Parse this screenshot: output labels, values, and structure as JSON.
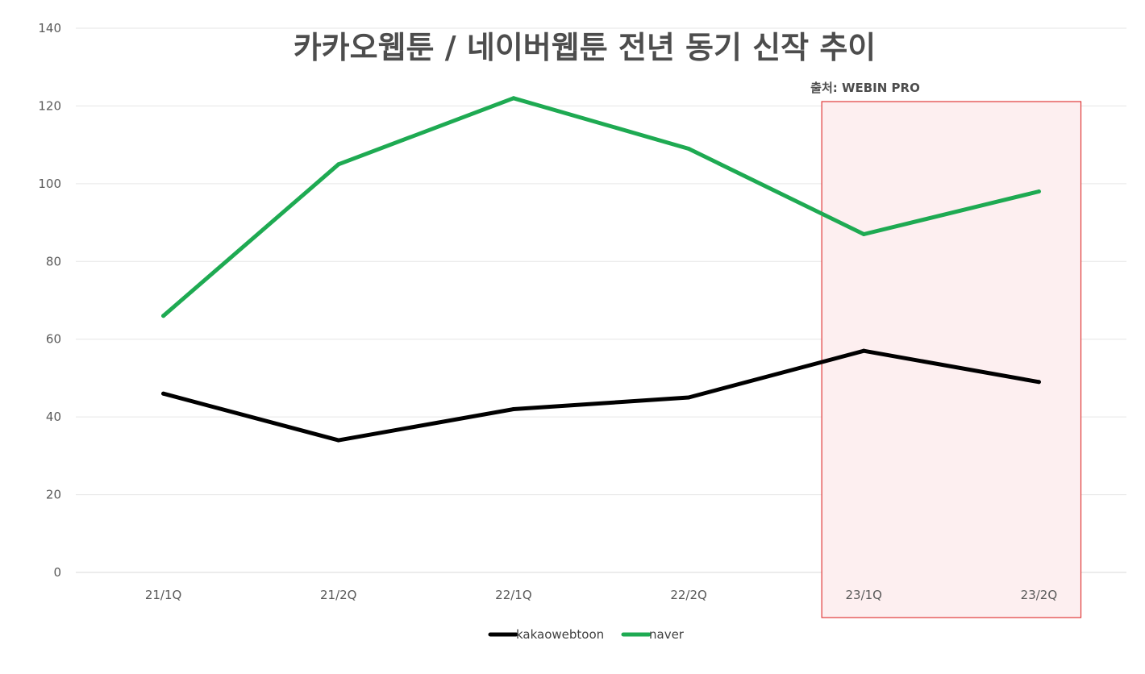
{
  "chart_data": {
    "type": "line",
    "title": "카카오웹툰 / 네이버웹툰 전년 동기 신작 추이",
    "annotation": "출처: WEBIN PRO",
    "categories": [
      "21/1Q",
      "21/2Q",
      "22/1Q",
      "22/2Q",
      "23/1Q",
      "23/2Q"
    ],
    "series": [
      {
        "name": "kakaowebtoon",
        "color": "#000000",
        "values": [
          46,
          34,
          42,
          45,
          57,
          49
        ]
      },
      {
        "name": "naver",
        "color": "#1eaa52",
        "values": [
          66,
          105,
          122,
          109,
          87,
          98
        ]
      }
    ],
    "ylim": [
      0,
      140
    ],
    "yticks": [
      0,
      20,
      40,
      60,
      80,
      100,
      120,
      140
    ],
    "grid": true,
    "legend_position": "bottom-center",
    "highlight": {
      "from_category": "23/1Q",
      "to_category": "23/2Q",
      "fill": "#fdeff0",
      "stroke": "#e03a3a"
    }
  }
}
